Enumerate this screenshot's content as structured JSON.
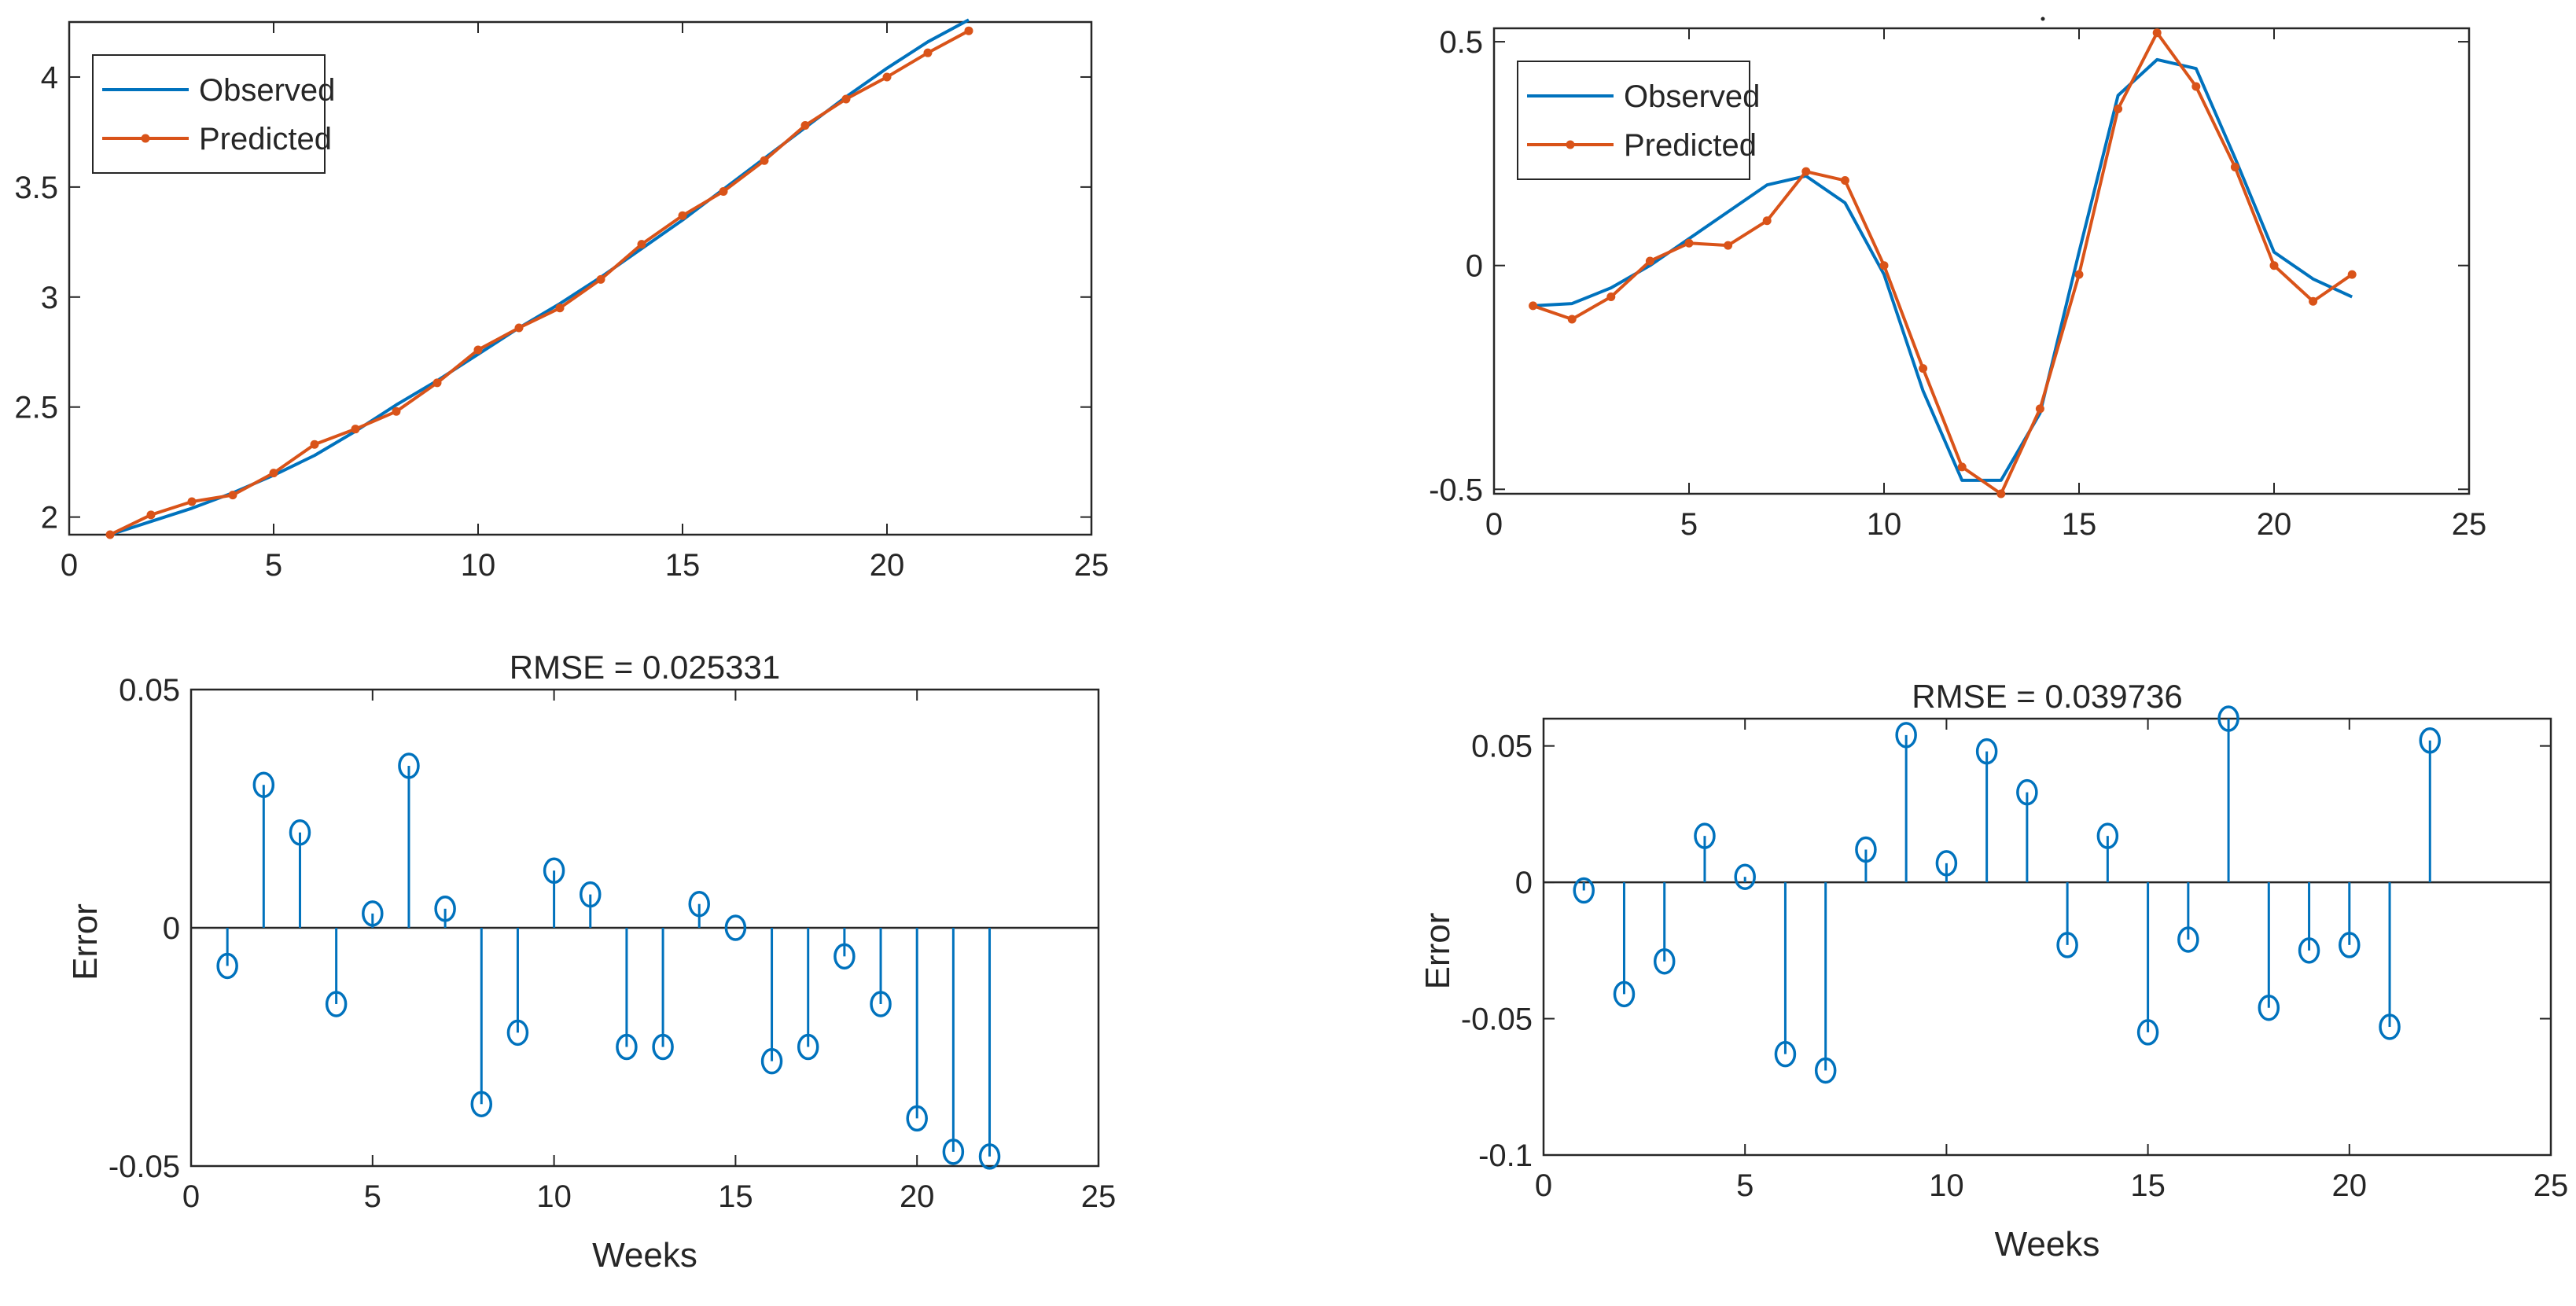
{
  "colors": {
    "observed": "#0072BD",
    "predicted": "#D95319",
    "axis": "#262626",
    "background": "#ffffff"
  },
  "chart_data": [
    {
      "id": "top-left",
      "type": "line",
      "title": "",
      "xlabel": "",
      "ylabel": "",
      "xlim": [
        0,
        25
      ],
      "ylim": [
        1.92,
        4.25
      ],
      "xticks": [
        0,
        5,
        10,
        15,
        20,
        25
      ],
      "yticks": [
        2,
        2.5,
        3,
        3.5,
        4
      ],
      "legend": {
        "position": "top-left",
        "entries": [
          "Observed",
          "Predicted"
        ]
      },
      "x": [
        1,
        2,
        3,
        4,
        5,
        6,
        7,
        8,
        9,
        10,
        11,
        12,
        13,
        14,
        15,
        16,
        17,
        18,
        19,
        20,
        21,
        22
      ],
      "series": [
        {
          "name": "Observed",
          "marker": "none",
          "values": [
            1.92,
            1.98,
            2.04,
            2.11,
            2.19,
            2.28,
            2.39,
            2.51,
            2.62,
            2.74,
            2.86,
            2.97,
            3.09,
            3.22,
            3.35,
            3.49,
            3.63,
            3.77,
            3.91,
            4.04,
            4.16,
            4.26
          ]
        },
        {
          "name": "Predicted",
          "marker": "dot",
          "values": [
            1.92,
            2.01,
            2.07,
            2.1,
            2.2,
            2.33,
            2.4,
            2.48,
            2.61,
            2.76,
            2.86,
            2.95,
            3.08,
            3.24,
            3.37,
            3.48,
            3.62,
            3.78,
            3.9,
            4.0,
            4.11,
            4.21
          ]
        }
      ]
    },
    {
      "id": "top-right",
      "type": "line",
      "title": "",
      "xlabel": "",
      "ylabel": "",
      "xlim": [
        0,
        25
      ],
      "ylim": [
        -0.51,
        0.53
      ],
      "xticks": [
        0,
        5,
        10,
        15,
        20,
        25
      ],
      "yticks": [
        -0.5,
        0,
        0.5
      ],
      "legend": {
        "position": "top-left",
        "entries": [
          "Observed",
          "Predicted"
        ]
      },
      "x": [
        1,
        2,
        3,
        4,
        5,
        6,
        7,
        8,
        9,
        10,
        11,
        12,
        13,
        14,
        15,
        16,
        17,
        18,
        19,
        20,
        21,
        22
      ],
      "series": [
        {
          "name": "Observed",
          "marker": "none",
          "values": [
            -0.09,
            -0.085,
            -0.05,
            0.0,
            0.06,
            0.12,
            0.18,
            0.2,
            0.14,
            -0.02,
            -0.28,
            -0.48,
            -0.48,
            -0.33,
            0.03,
            0.38,
            0.46,
            0.44,
            0.24,
            0.03,
            -0.03,
            -0.07
          ]
        },
        {
          "name": "Predicted",
          "marker": "dot",
          "values": [
            -0.09,
            -0.12,
            -0.07,
            0.01,
            0.05,
            0.045,
            0.1,
            0.21,
            0.19,
            0.0,
            -0.23,
            -0.45,
            -0.51,
            -0.32,
            -0.02,
            0.35,
            0.52,
            0.4,
            0.22,
            0.0,
            -0.08,
            -0.02
          ]
        }
      ]
    },
    {
      "id": "bottom-left",
      "type": "stem",
      "title": "RMSE = 0.025331",
      "xlabel": "Weeks",
      "ylabel": "Error",
      "xlim": [
        0,
        25
      ],
      "ylim": [
        -0.05,
        0.05
      ],
      "xticks": [
        0,
        5,
        10,
        15,
        20,
        25
      ],
      "yticks": [
        -0.05,
        0,
        0.05
      ],
      "x": [
        1,
        2,
        3,
        4,
        5,
        6,
        7,
        8,
        9,
        10,
        11,
        12,
        13,
        14,
        15,
        16,
        17,
        18,
        19,
        20,
        21,
        22
      ],
      "values": [
        -0.008,
        0.03,
        0.02,
        -0.016,
        0.003,
        0.034,
        0.004,
        -0.037,
        -0.022,
        0.012,
        0.007,
        -0.025,
        -0.025,
        0.005,
        0.0,
        -0.028,
        -0.025,
        -0.006,
        -0.016,
        -0.04,
        -0.047,
        -0.048
      ]
    },
    {
      "id": "bottom-right",
      "type": "stem",
      "title": "RMSE = 0.039736",
      "xlabel": "Weeks",
      "ylabel": "Error",
      "xlim": [
        0,
        25
      ],
      "ylim": [
        -0.1,
        0.06
      ],
      "xticks": [
        0,
        5,
        10,
        15,
        20,
        25
      ],
      "yticks": [
        -0.1,
        -0.05,
        0,
        0.05
      ],
      "x": [
        1,
        2,
        3,
        4,
        5,
        6,
        7,
        8,
        9,
        10,
        11,
        12,
        13,
        14,
        15,
        16,
        17,
        18,
        19,
        20,
        21,
        22
      ],
      "values": [
        -0.003,
        -0.041,
        -0.029,
        0.017,
        0.002,
        -0.063,
        -0.069,
        0.012,
        0.054,
        0.007,
        0.048,
        0.033,
        -0.023,
        0.017,
        -0.055,
        -0.021,
        0.06,
        -0.046,
        -0.025,
        -0.023,
        -0.053,
        0.052
      ]
    }
  ]
}
